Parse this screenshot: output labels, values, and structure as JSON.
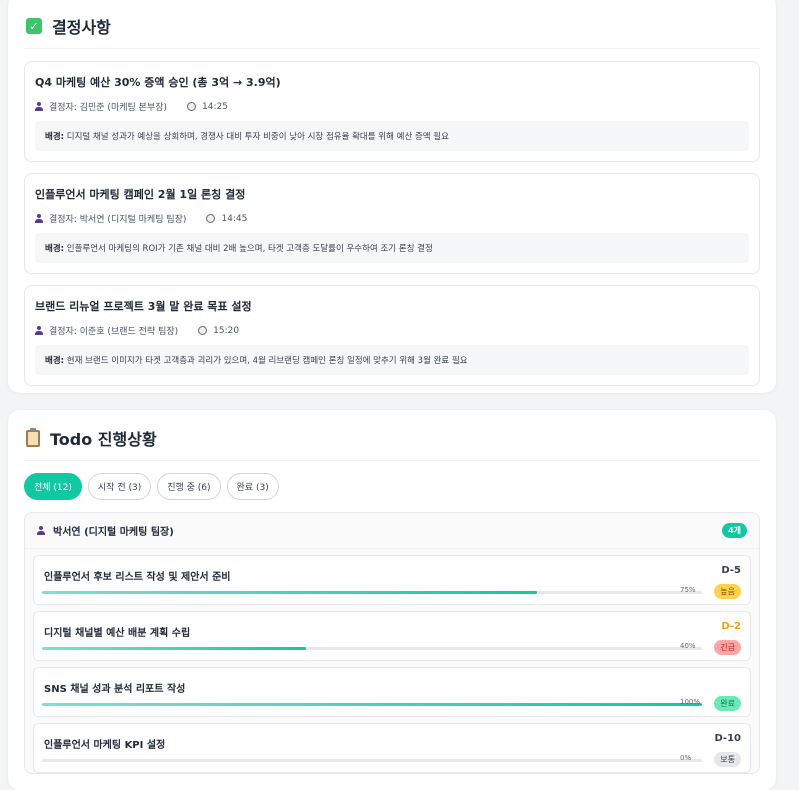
{
  "decisions": {
    "title": "결정사항",
    "items": [
      {
        "title": "Q4 마케팅 예산 30% 증액 승인 (총 3억 → 3.9억)",
        "decider": "결정자: 김민준 (마케팅 본부장)",
        "time": "14:25",
        "bg_label": "배경:",
        "bg": " 디지털 채널 성과가 예상을 상회하며, 경쟁사 대비 투자 비중이 낮아 시장 점유율 확대를 위해 예산 증액 필요"
      },
      {
        "title": "인플루언서 마케팅 캠페인 2월 1일 론칭 결정",
        "decider": "결정자: 박서연 (디지털 마케팅 팀장)",
        "time": "14:45",
        "bg_label": "배경:",
        "bg": " 인플루언서 마케팅의 ROI가 기존 채널 대비 2배 높으며, 타겟 고객층 도달률이 우수하여 조기 론칭 결정"
      },
      {
        "title": "브랜드 리뉴얼 프로젝트 3월 말 완료 목표 설정",
        "decider": "결정자: 이준호 (브랜드 전략 팀장)",
        "time": "15:20",
        "bg_label": "배경:",
        "bg": " 현재 브랜드 이미지가 타겟 고객층과 괴리가 있으며, 4월 리브랜딩 캠페인 론칭 일정에 맞추기 위해 3월 완료 필요"
      }
    ]
  },
  "todo": {
    "title": "Todo 진행상황",
    "filters": [
      "전체 (12)",
      "시작 전 (3)",
      "진행 중 (6)",
      "완료 (3)"
    ],
    "group": {
      "owner": "박서연 (디지털 마케팅 팀장)",
      "count": "4개"
    },
    "items": [
      {
        "title": "인플루언서 후보 리스트 작성 및 제안서 준비",
        "progress": 75,
        "pct": "75%",
        "due": "D-5",
        "priority": "높음",
        "due_color": "#374151",
        "badge_bg": "#fcd34d",
        "badge_fg": "#92400e"
      },
      {
        "title": "디지털 채널별 예산 배분 계획 수립",
        "progress": 40,
        "pct": "40%",
        "due": "D-2",
        "priority": "긴급",
        "due_color": "#f59e0b",
        "badge_bg": "#fca5a5",
        "badge_fg": "#b91c1c"
      },
      {
        "title": "SNS 채널 성과 분석 리포트 작성",
        "progress": 100,
        "pct": "100%",
        "due": "",
        "priority": "완료",
        "due_color": "#374151",
        "badge_bg": "#6ee7b7",
        "badge_fg": "#047857"
      },
      {
        "title": "인플루언서 마케팅 KPI 설정",
        "progress": 0,
        "pct": "0%",
        "due": "D-10",
        "priority": "보통",
        "due_color": "#374151",
        "badge_bg": "#e5e7eb",
        "badge_fg": "#374151"
      }
    ]
  }
}
